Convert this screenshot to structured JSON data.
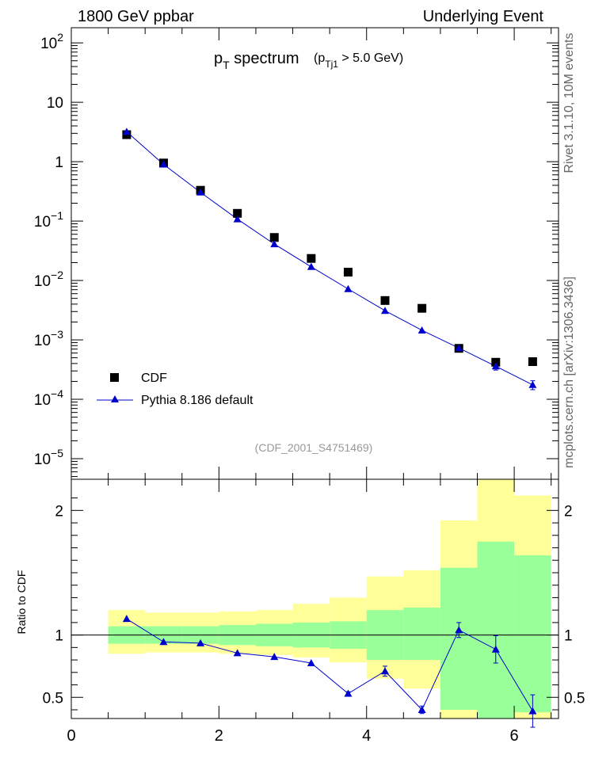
{
  "header": {
    "left": "1800 GeV ppbar",
    "right": "Underlying Event"
  },
  "side_labels": {
    "rivet": "Rivet 3.1.10, 10M events",
    "mcplots": "mcplots.cern.ch [arXiv:1306.3436]"
  },
  "title": {
    "main": "p",
    "main_sub": "T",
    "main_rest": " spectrum",
    "cut_open": "(p",
    "cut_sub": "Tj1",
    "cut_rest": " > 5.0 GeV)"
  },
  "analysis_tag": "(CDF_2001_S4751469)",
  "legend": {
    "position": "bottom-left",
    "entries": [
      {
        "label": "CDF",
        "marker": "square",
        "color": "#000000"
      },
      {
        "label": "Pythia 8.186 default",
        "marker": "triangle-line",
        "color": "#0000cc"
      }
    ]
  },
  "colors": {
    "data": "#000000",
    "mc": "#0000cc",
    "band_inner": "#99ff99",
    "band_outer": "#ffff99",
    "tag": "#999999",
    "side": "#666666"
  },
  "chart_data": [
    {
      "type": "scatter",
      "yscale": "log",
      "ylim": [
        4.5e-06,
        180
      ],
      "xlim": [
        0,
        6.6
      ],
      "y_ticks": [
        {
          "value": 100,
          "base": "10",
          "exp": "2"
        },
        {
          "value": 10,
          "base": "10",
          "exp": ""
        },
        {
          "value": 1,
          "base": "1",
          "exp": ""
        },
        {
          "value": 0.1,
          "base": "10",
          "exp": "−1"
        },
        {
          "value": 0.01,
          "base": "10",
          "exp": "−2"
        },
        {
          "value": 0.001,
          "base": "10",
          "exp": "−3"
        },
        {
          "value": 0.0001,
          "base": "10",
          "exp": "−4"
        },
        {
          "value": 1e-05,
          "base": "10",
          "exp": "−5"
        }
      ],
      "series": [
        {
          "name": "CDF",
          "x": [
            0.75,
            1.25,
            1.75,
            2.25,
            2.75,
            3.25,
            3.75,
            4.25,
            4.75,
            5.25,
            5.75,
            6.25
          ],
          "y": [
            2.85,
            0.95,
            0.33,
            0.135,
            0.053,
            0.0235,
            0.0138,
            0.0046,
            0.0034,
            0.00072,
            0.00042,
            0.00043
          ]
        },
        {
          "name": "Pythia 8.186 default",
          "x": [
            0.75,
            1.25,
            1.75,
            2.25,
            2.75,
            3.25,
            3.75,
            4.25,
            4.75,
            5.25,
            5.75,
            6.25
          ],
          "y": [
            3.2,
            0.9,
            0.305,
            0.108,
            0.041,
            0.017,
            0.0072,
            0.0031,
            0.00145,
            0.00073,
            0.00036,
            0.000175
          ],
          "yerr": [
            0,
            0,
            0,
            0,
            0,
            0,
            0,
            0,
            0,
            0,
            5e-05,
            3e-05
          ]
        }
      ]
    },
    {
      "type": "line",
      "ylabel": "Ratio to CDF",
      "ylim": [
        0.33,
        2.25
      ],
      "xlim": [
        0,
        6.6
      ],
      "x_ticks": [
        0,
        2,
        4,
        6
      ],
      "y_ticks": [
        0.5,
        1,
        2
      ],
      "bands": {
        "edges": [
          0.5,
          1.0,
          1.5,
          2.0,
          2.5,
          3.0,
          3.5,
          4.0,
          4.5,
          5.0,
          5.5,
          6.0,
          6.5
        ],
        "inner_low": [
          0.93,
          0.93,
          0.93,
          0.92,
          0.91,
          0.9,
          0.89,
          0.8,
          0.8,
          0.4,
          0.33,
          0.38
        ],
        "inner_high": [
          1.07,
          1.07,
          1.07,
          1.08,
          1.09,
          1.1,
          1.11,
          1.2,
          1.22,
          1.54,
          1.75,
          1.64
        ],
        "outer_low": [
          0.85,
          0.86,
          0.86,
          0.85,
          0.84,
          0.82,
          0.78,
          0.65,
          0.57,
          0.33,
          0.33,
          0.33
        ],
        "outer_high": [
          1.2,
          1.18,
          1.18,
          1.19,
          1.2,
          1.25,
          1.3,
          1.47,
          1.52,
          1.92,
          2.25,
          2.12
        ]
      },
      "series": [
        {
          "name": "Pythia 8.186 default",
          "x": [
            0.75,
            1.25,
            1.75,
            2.25,
            2.75,
            3.25,
            3.75,
            4.25,
            4.75,
            5.25,
            5.75,
            6.25
          ],
          "y": [
            1.13,
            0.945,
            0.935,
            0.855,
            0.825,
            0.775,
            0.53,
            0.71,
            0.4,
            1.04,
            0.885,
            0.39
          ],
          "yerr": [
            0,
            0,
            0,
            0,
            0,
            0,
            0.015,
            0.04,
            0.03,
            0.06,
            0.11,
            0.13
          ]
        }
      ]
    }
  ]
}
